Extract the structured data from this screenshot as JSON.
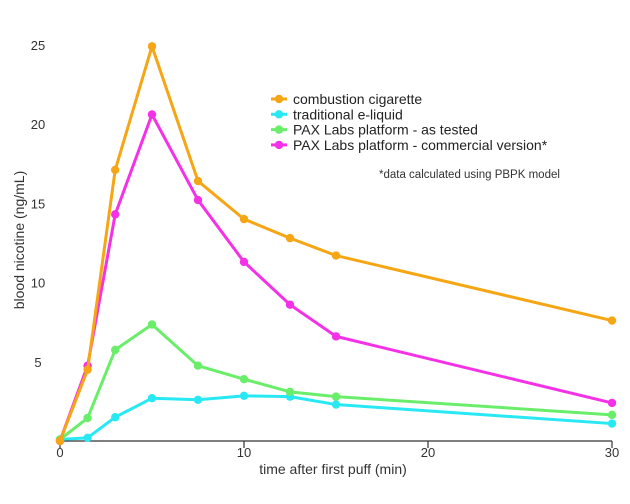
{
  "chart_data": {
    "type": "line",
    "title": "",
    "xlabel": "time after first puff (min)",
    "ylabel": "blood nicotine (ng/mL)",
    "xlim": [
      0,
      30
    ],
    "ylim": [
      0,
      26
    ],
    "x_ticks": [
      0,
      10,
      20,
      30
    ],
    "y_ticks": [
      5,
      10,
      15,
      20,
      25
    ],
    "grid": false,
    "legend_position": "top-right",
    "annotation": "*data calculated using PBPK model",
    "series": [
      {
        "name": "combustion cigarette",
        "color": "#f6a614",
        "x": [
          0,
          1.5,
          3,
          5,
          7.5,
          10,
          12.5,
          15,
          30
        ],
        "y": [
          0,
          4.5,
          17.1,
          24.9,
          16.4,
          14.0,
          12.8,
          11.7,
          7.6
        ]
      },
      {
        "name": "traditional e-liquid",
        "color": "#28e8f4",
        "x": [
          0,
          1.5,
          3,
          5,
          7.5,
          10,
          12.5,
          15,
          30
        ],
        "y": [
          0.1,
          0.2,
          1.5,
          2.7,
          2.6,
          2.85,
          2.8,
          2.3,
          1.1
        ]
      },
      {
        "name": "PAX Labs platform - as tested",
        "color": "#6aee6a",
        "x": [
          0,
          1.5,
          3,
          5,
          7.5,
          10,
          12.5,
          15,
          30
        ],
        "y": [
          0.1,
          1.45,
          5.75,
          7.35,
          4.75,
          3.9,
          3.1,
          2.8,
          1.65
        ]
      },
      {
        "name": "PAX Labs platform - commercial version*",
        "color": "#f531e8",
        "x": [
          0,
          1.5,
          3,
          5,
          7.5,
          10,
          12.5,
          15,
          30
        ],
        "y": [
          0,
          4.75,
          14.3,
          20.6,
          15.2,
          11.3,
          8.6,
          6.6,
          2.4
        ]
      }
    ]
  }
}
